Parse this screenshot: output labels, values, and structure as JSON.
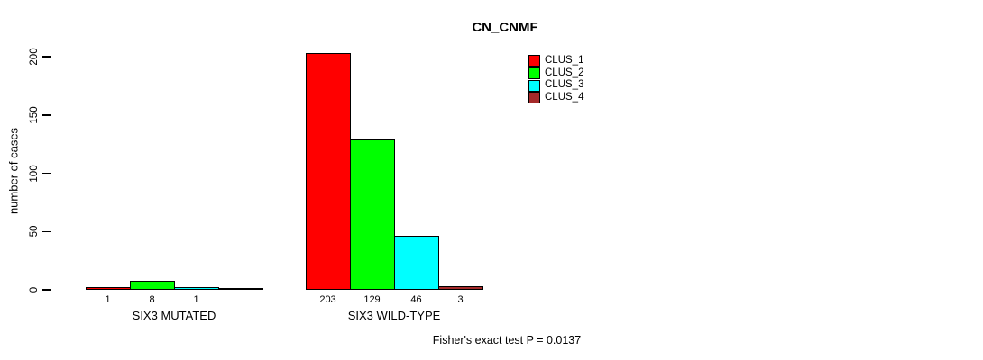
{
  "chart_data": {
    "type": "bar",
    "title": "CN_CNMF",
    "ylabel": "number of cases",
    "xlabel": "",
    "ylim": [
      0,
      200
    ],
    "yticks": [
      0,
      50,
      100,
      150,
      200
    ],
    "grid": false,
    "legend_position": "top-right",
    "series_colors": [
      "#ff0000",
      "#00ff00",
      "#00ffff",
      "#a52a2a"
    ],
    "legend": [
      {
        "label": "CLUS_1",
        "color": "#ff0000"
      },
      {
        "label": "CLUS_2",
        "color": "#00ff00"
      },
      {
        "label": "CLUS_3",
        "color": "#00ffff"
      },
      {
        "label": "CLUS_4",
        "color": "#a52a2a"
      }
    ],
    "groups": [
      {
        "label": "SIX3 MUTATED",
        "values": [
          1,
          8,
          1,
          0
        ],
        "bar_labels": [
          "1",
          "8",
          "1",
          ""
        ]
      },
      {
        "label": "SIX3 WILD-TYPE",
        "values": [
          203,
          129,
          46,
          3
        ],
        "bar_labels": [
          "203",
          "129",
          "46",
          "3"
        ]
      }
    ],
    "annotation": "Fisher's exact test P = 0.0137",
    "axis_color": "#000000"
  }
}
